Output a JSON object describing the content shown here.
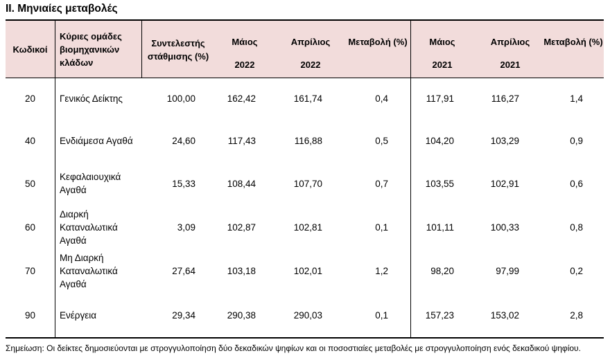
{
  "title": "II. Μηνιαίες μεταβολές",
  "headers": {
    "code": "Κωδικοί",
    "group": "Κύριες ομάδες βιομηχανικών κλάδων",
    "weight": "Συντελεστής στάθμισης (%)",
    "may_2022_month": "Μάιος",
    "may_2022_year": "2022",
    "apr_2022_month": "Απρίλιος",
    "apr_2022_year": "2022",
    "change_2022": "Μεταβολή (%)",
    "may_2021_month": "Μάιος",
    "may_2021_year": "2021",
    "apr_2021_month": "Απρίλιος",
    "apr_2021_year": "2021",
    "change_2021": "Μεταβολή (%)"
  },
  "rows": [
    {
      "code": "20",
      "group": "Γενικός Δείκτης",
      "weight": "100,00",
      "may22": "162,42",
      "apr22": "161,74",
      "chg22": "0,4",
      "may21": "117,91",
      "apr21": "116,27",
      "chg21": "1,4"
    },
    {
      "code": "40",
      "group": "Ενδιάμεσα Αγαθά",
      "weight": "24,60",
      "may22": "117,43",
      "apr22": "116,88",
      "chg22": "0,5",
      "may21": "104,20",
      "apr21": "103,29",
      "chg21": "0,9"
    },
    {
      "code": "50",
      "group": "Κεφαλαιουχικά Αγαθά",
      "weight": "15,33",
      "may22": "108,44",
      "apr22": "107,70",
      "chg22": "0,7",
      "may21": "103,55",
      "apr21": "102,91",
      "chg21": "0,6"
    },
    {
      "code": "60",
      "group": "Διαρκή Καταναλωτικά Αγαθά",
      "weight": "3,09",
      "may22": "102,87",
      "apr22": "102,81",
      "chg22": "0,1",
      "may21": "101,11",
      "apr21": "100,33",
      "chg21": "0,8"
    },
    {
      "code": "70",
      "group": "Μη Διαρκή Καταναλωτικά Αγαθά",
      "weight": "27,64",
      "may22": "103,18",
      "apr22": "102,01",
      "chg22": "1,2",
      "may21": "98,20",
      "apr21": "97,99",
      "chg21": "0,2"
    },
    {
      "code": "90",
      "group": "Ενέργεια",
      "weight": "29,34",
      "may22": "290,38",
      "apr22": "290,03",
      "chg22": "0,1",
      "may21": "157,23",
      "apr21": "153,02",
      "chg21": "2,8"
    }
  ],
  "note": "Σημείωση: Οι δείκτες δημοσιεύονται με στρογγυλοποίηση δύο δεκαδικών ψηφίων και οι ποσοστιαίες μεταβολές με στρογγυλοποίηση ενός δεκαδικού ψηφίου."
}
